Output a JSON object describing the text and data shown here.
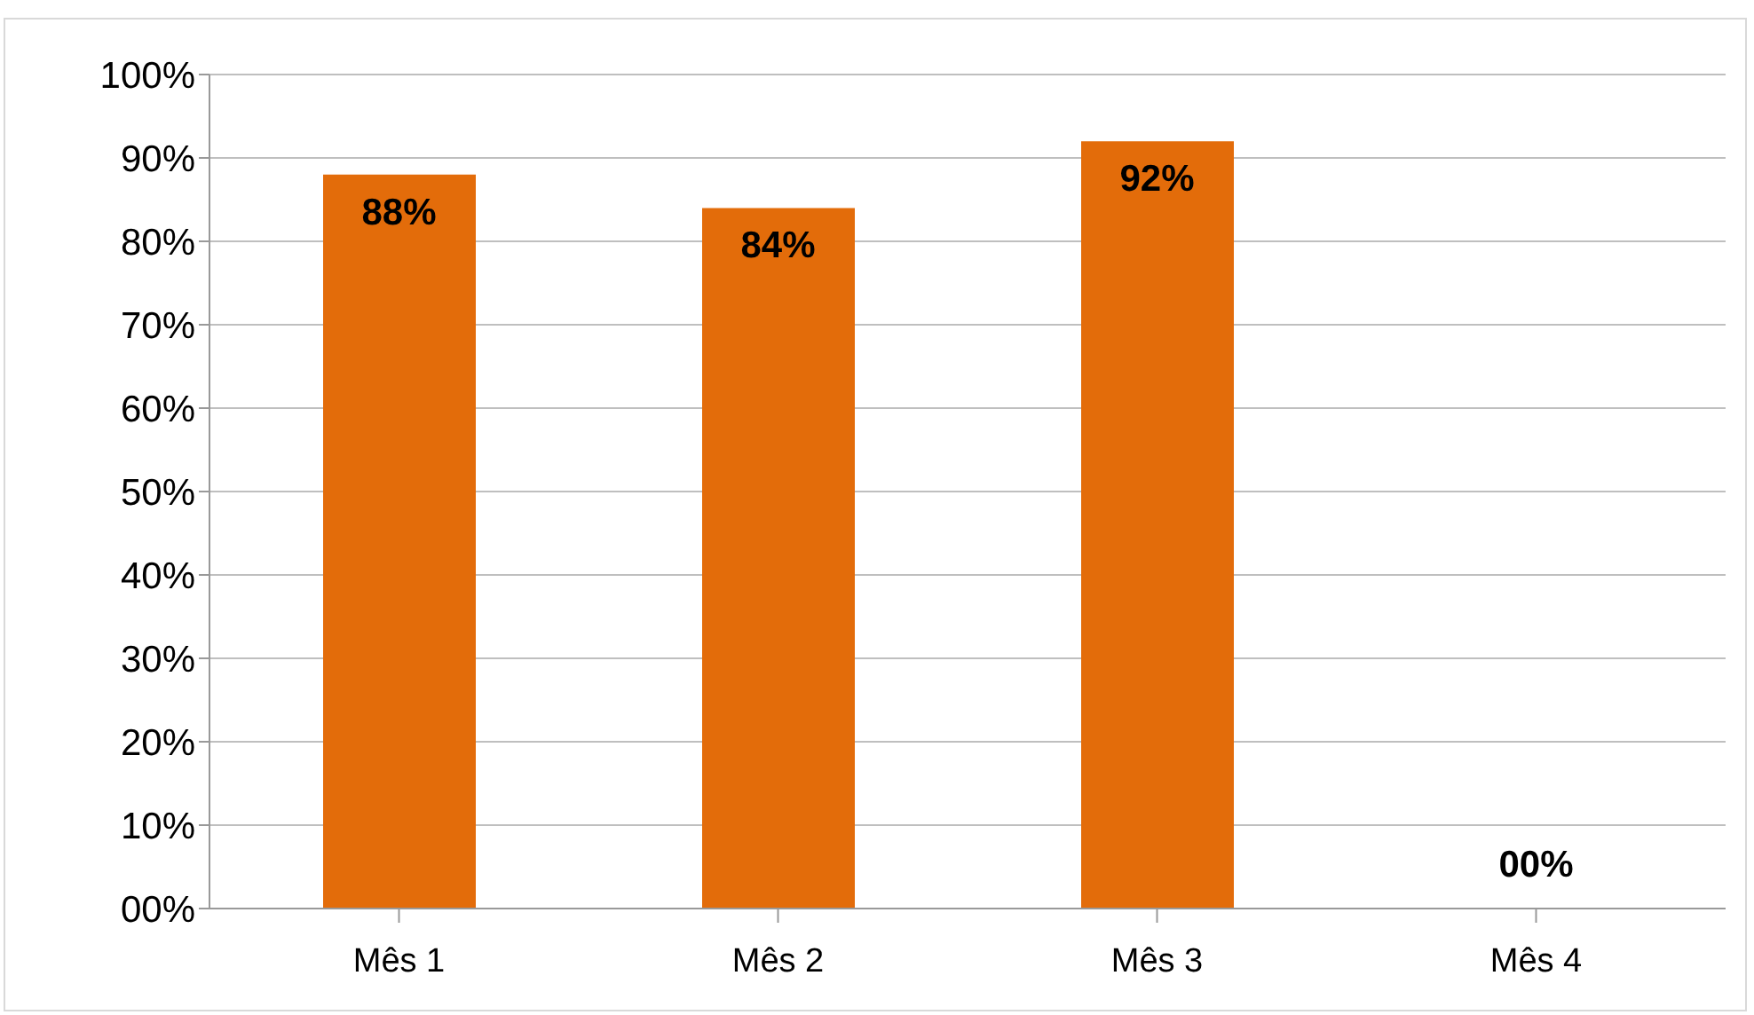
{
  "chart_data": {
    "type": "bar",
    "categories": [
      "Mês 1",
      "Mês 2",
      "Mês 3",
      "Mês 4"
    ],
    "values": [
      88,
      84,
      92,
      0
    ],
    "color": "#e36c0a",
    "value_labels": [
      "88%",
      "84%",
      "92%",
      "00%"
    ],
    "ylim": [
      0,
      100
    ],
    "yticks": [
      {
        "value": 0,
        "label": "00%"
      },
      {
        "value": 10,
        "label": "10%"
      },
      {
        "value": 20,
        "label": "20%"
      },
      {
        "value": 30,
        "label": "30%"
      },
      {
        "value": 40,
        "label": "40%"
      },
      {
        "value": 50,
        "label": "50%"
      },
      {
        "value": 60,
        "label": "60%"
      },
      {
        "value": 70,
        "label": "70%"
      },
      {
        "value": 80,
        "label": "80%"
      },
      {
        "value": 90,
        "label": "90%"
      },
      {
        "value": 100,
        "label": "100%"
      }
    ],
    "grid": "y",
    "legend": false
  }
}
